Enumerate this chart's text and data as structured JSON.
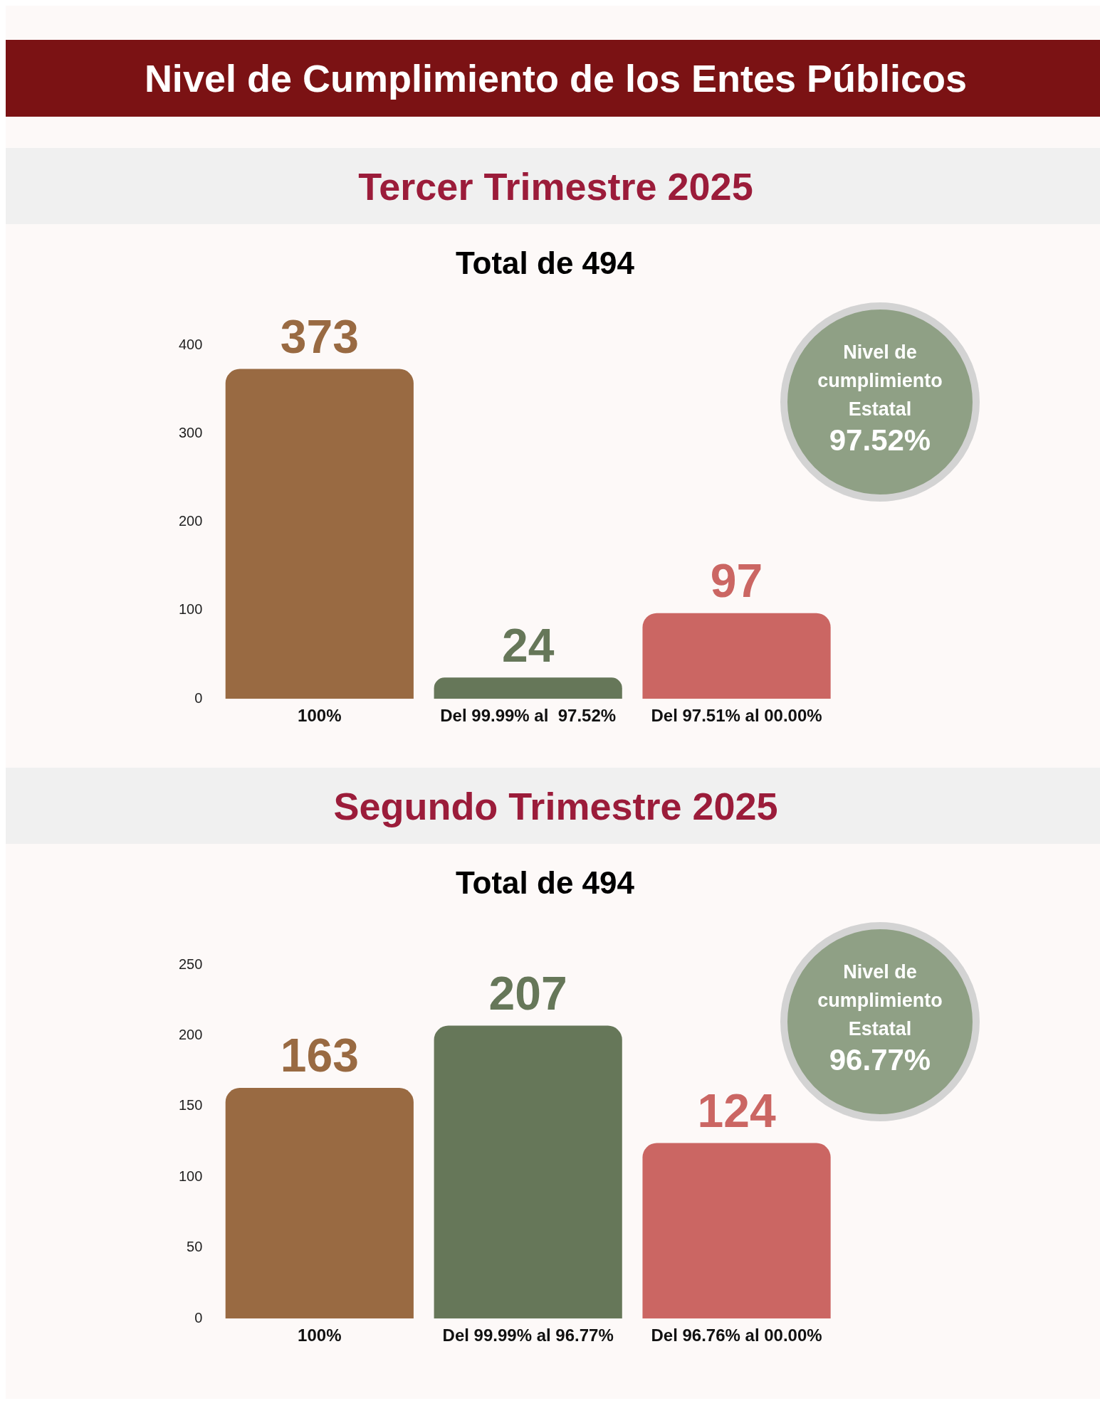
{
  "chart_data": [
    {
      "type": "other",
      "title": "Nivel de Cumplimiento de los Entes Públicos"
    },
    {
      "type": "bar",
      "title": "Tercer Trimestre 2025",
      "subtitle": "Total de 494",
      "categories": [
        "100%",
        "Del 99.99% al  97.52%",
        "Del 97.51% al 00.00%"
      ],
      "values": [
        373,
        24,
        97
      ],
      "colors": [
        "#996a42",
        "#667759",
        "#cb6663"
      ],
      "ylim": [
        0,
        400
      ],
      "yticks": [
        0,
        100,
        200,
        300,
        400
      ],
      "data_labels": true,
      "annotations": [
        "Nivel de cumplimiento Estatal",
        "97.52%"
      ]
    },
    {
      "type": "bar",
      "title": "Segundo Trimestre 2025",
      "subtitle": "Total de 494",
      "categories": [
        "100%",
        "Del 99.99% al 96.77%",
        "Del 96.76% al 00.00%"
      ],
      "values": [
        163,
        207,
        124
      ],
      "colors": [
        "#996a42",
        "#667759",
        "#cb6663"
      ],
      "ylim": [
        0,
        250
      ],
      "yticks": [
        0,
        50,
        100,
        150,
        200,
        250
      ],
      "data_labels": true,
      "annotations": [
        "Nivel de cumplimiento Estatal",
        "96.77%"
      ]
    }
  ]
}
